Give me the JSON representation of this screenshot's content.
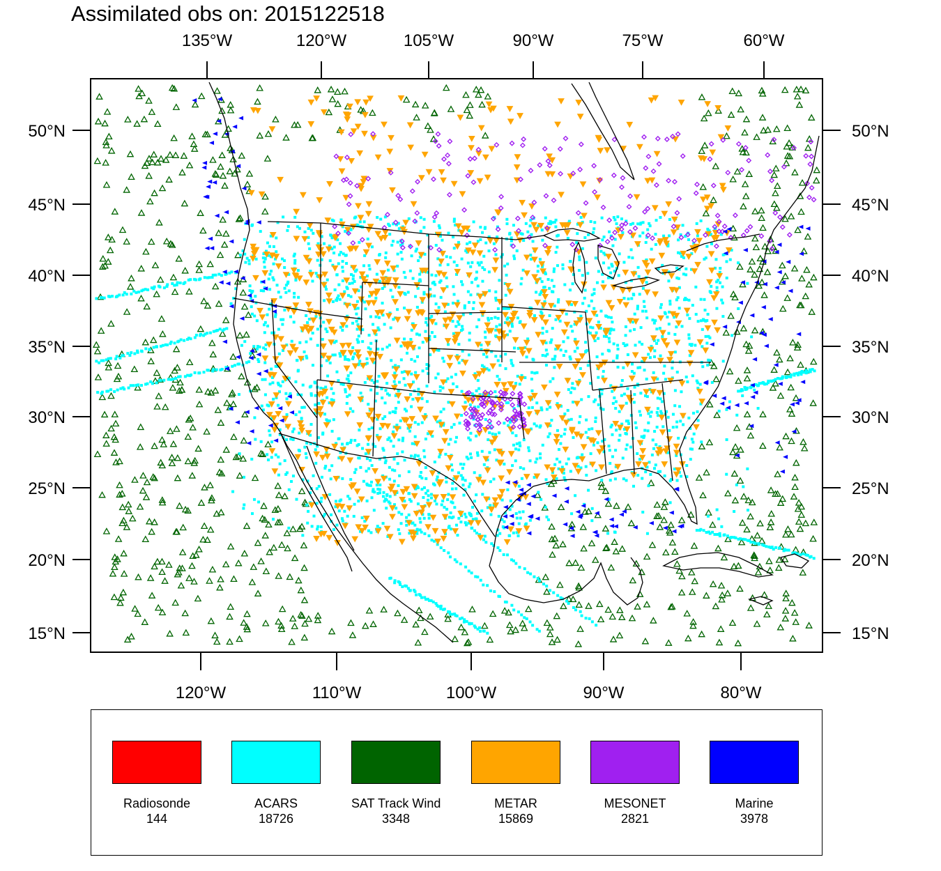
{
  "title": "Assimilated obs on: 2015122518",
  "map": {
    "top_longitude_labels": [
      "135°W",
      "120°W",
      "105°W",
      "90°W",
      "75°W",
      "60°W"
    ],
    "bottom_longitude_labels": [
      "120°W",
      "110°W",
      "100°W",
      "90°W",
      "80°W"
    ],
    "left_latitude_labels": [
      "50°N",
      "45°N",
      "40°N",
      "35°N",
      "30°N",
      "25°N",
      "20°N",
      "15°N"
    ],
    "right_latitude_labels": [
      "50°N",
      "45°N",
      "40°N",
      "35°N",
      "30°N",
      "25°N",
      "20°N",
      "15°N"
    ]
  },
  "legend": [
    {
      "name": "Radiosonde",
      "count": "144",
      "color": "#ff0000"
    },
    {
      "name": "ACARS",
      "count": "18726",
      "color": "#00ffff"
    },
    {
      "name": "SAT Track Wind",
      "count": "3348",
      "color": "#006400"
    },
    {
      "name": "METAR",
      "count": "15869",
      "color": "#ffa500"
    },
    {
      "name": "MESONET",
      "count": "2821",
      "color": "#a020f0"
    },
    {
      "name": "Marine",
      "count": "3978",
      "color": "#0000ff"
    }
  ]
}
